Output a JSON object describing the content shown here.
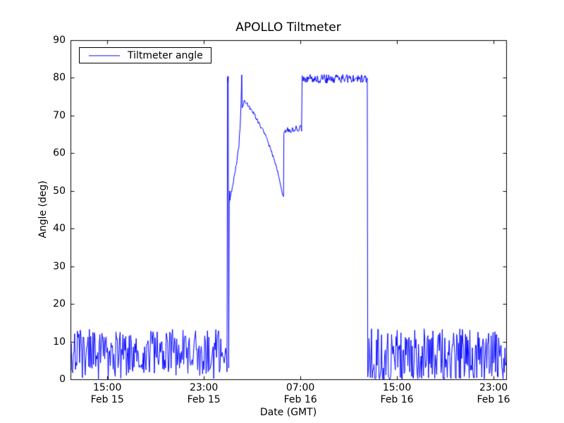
{
  "chart_data": {
    "type": "line",
    "title": "APOLLO Tiltmeter",
    "xlabel": "Date (GMT)",
    "ylabel": "Angle (deg)",
    "line_color": "#0000ff",
    "background": "#ffffff",
    "grid": false,
    "legend": {
      "position": "upper left",
      "entries": [
        {
          "label": "Tiltmeter angle",
          "color": "#0000ff"
        }
      ]
    },
    "ylim": [
      0,
      90
    ],
    "yticks": [
      {
        "value": 0,
        "label": "0"
      },
      {
        "value": 10,
        "label": "10"
      },
      {
        "value": 20,
        "label": "20"
      },
      {
        "value": 30,
        "label": "30"
      },
      {
        "value": 40,
        "label": "40"
      },
      {
        "value": 50,
        "label": "50"
      },
      {
        "value": 60,
        "label": "60"
      },
      {
        "value": 70,
        "label": "70"
      },
      {
        "value": 80,
        "label": "80"
      },
      {
        "value": 90,
        "label": "90"
      }
    ],
    "x_axis": {
      "units": "hours since Feb 15 00:00 GMT",
      "range": [
        11.95,
        48.05
      ],
      "ticks": [
        {
          "value": 15,
          "time": "15:00",
          "date": "Feb 15"
        },
        {
          "value": 23,
          "time": "23:00",
          "date": "Feb 15"
        },
        {
          "value": 31,
          "time": "07:00",
          "date": "Feb 16"
        },
        {
          "value": 39,
          "time": "15:00",
          "date": "Feb 16"
        },
        {
          "value": 47,
          "time": "23:00",
          "date": "Feb 16"
        }
      ]
    },
    "series_name": "Tiltmeter angle",
    "segments": [
      {
        "type": "noise",
        "desc": "background noise Feb 15 ~12:00 to Feb 16 ~00:55, 1-13 deg with occasional drops to 0",
        "t0": 11.95,
        "t1": 24.92,
        "dt": 0.058,
        "lo": 1.4,
        "hi": 13.3,
        "zero_prob": 0.05,
        "zero_max": 1.2
      },
      {
        "type": "path",
        "desc": "narrow spike to 80 deg at ~00:56 then fall to ~3 and recover to ~48",
        "pts": [
          [
            24.92,
            8.0
          ],
          [
            24.96,
            80.3
          ],
          [
            24.99,
            78.8
          ],
          [
            25.02,
            80.4
          ],
          [
            25.06,
            3.0
          ],
          [
            25.1,
            46.0
          ],
          [
            25.13,
            50.0
          ],
          [
            25.17,
            47.5
          ]
        ]
      },
      {
        "type": "path",
        "desc": "staircase rise from 48 to 81 deg, ~01:10 to ~02:10",
        "jitter": 0.7,
        "dt": 0.045,
        "pts": [
          [
            25.17,
            47.5
          ],
          [
            25.35,
            51.0
          ],
          [
            25.55,
            54.5
          ],
          [
            25.75,
            58.0
          ],
          [
            25.9,
            62.0
          ],
          [
            26.0,
            67.0
          ],
          [
            26.08,
            73.0
          ],
          [
            26.14,
            80.8
          ]
        ]
      },
      {
        "type": "path",
        "desc": "slow staircase decay from ~73 to ~49 deg, ~02:15 to ~05:35",
        "jitter": 0.5,
        "dt": 0.045,
        "pts": [
          [
            26.17,
            72.3
          ],
          [
            26.35,
            73.8
          ],
          [
            26.6,
            73.0
          ],
          [
            26.9,
            71.5
          ],
          [
            27.2,
            70.2
          ],
          [
            27.5,
            68.3
          ],
          [
            27.8,
            66.6
          ],
          [
            28.1,
            64.6
          ],
          [
            28.4,
            62.2
          ],
          [
            28.7,
            59.6
          ],
          [
            29.0,
            56.6
          ],
          [
            29.25,
            53.2
          ],
          [
            29.45,
            50.2
          ],
          [
            29.58,
            48.6
          ]
        ]
      },
      {
        "type": "path",
        "desc": "jump from 48.5 to ~65 deg at ~05:37",
        "pts": [
          [
            29.6,
            48.5
          ],
          [
            29.63,
            64.8
          ]
        ]
      },
      {
        "type": "noise",
        "desc": "plateau ~65-67 deg until ~07:00, slight upward trend",
        "t0": 29.63,
        "t1": 31.1,
        "dt": 0.05,
        "lo": [
          64.8,
          65.8
        ],
        "hi": [
          66.6,
          67.8
        ]
      },
      {
        "type": "path",
        "desc": "step up from 67 to ~80 deg at ~07:05",
        "pts": [
          [
            31.1,
            67.2
          ],
          [
            31.14,
            79.6
          ]
        ]
      },
      {
        "type": "noise",
        "desc": "plateau ~79-81 deg from ~07:05 to ~12:30",
        "t0": 31.14,
        "t1": 36.54,
        "dt": 0.045,
        "lo": 78.6,
        "hi": 80.9
      },
      {
        "type": "path",
        "desc": "drop from 80 deg back to near 0 at ~12:35",
        "pts": [
          [
            36.54,
            79.8
          ],
          [
            36.58,
            1.0
          ]
        ]
      },
      {
        "type": "noise",
        "desc": "background noise Feb 16 ~12:35 to ~24:00, 0-13 deg frequently touching 0",
        "t0": 36.58,
        "t1": 48.05,
        "dt": 0.052,
        "lo": 0.3,
        "hi": 13.4,
        "zero_prob": 0.16,
        "zero_max": 0.8
      }
    ]
  }
}
